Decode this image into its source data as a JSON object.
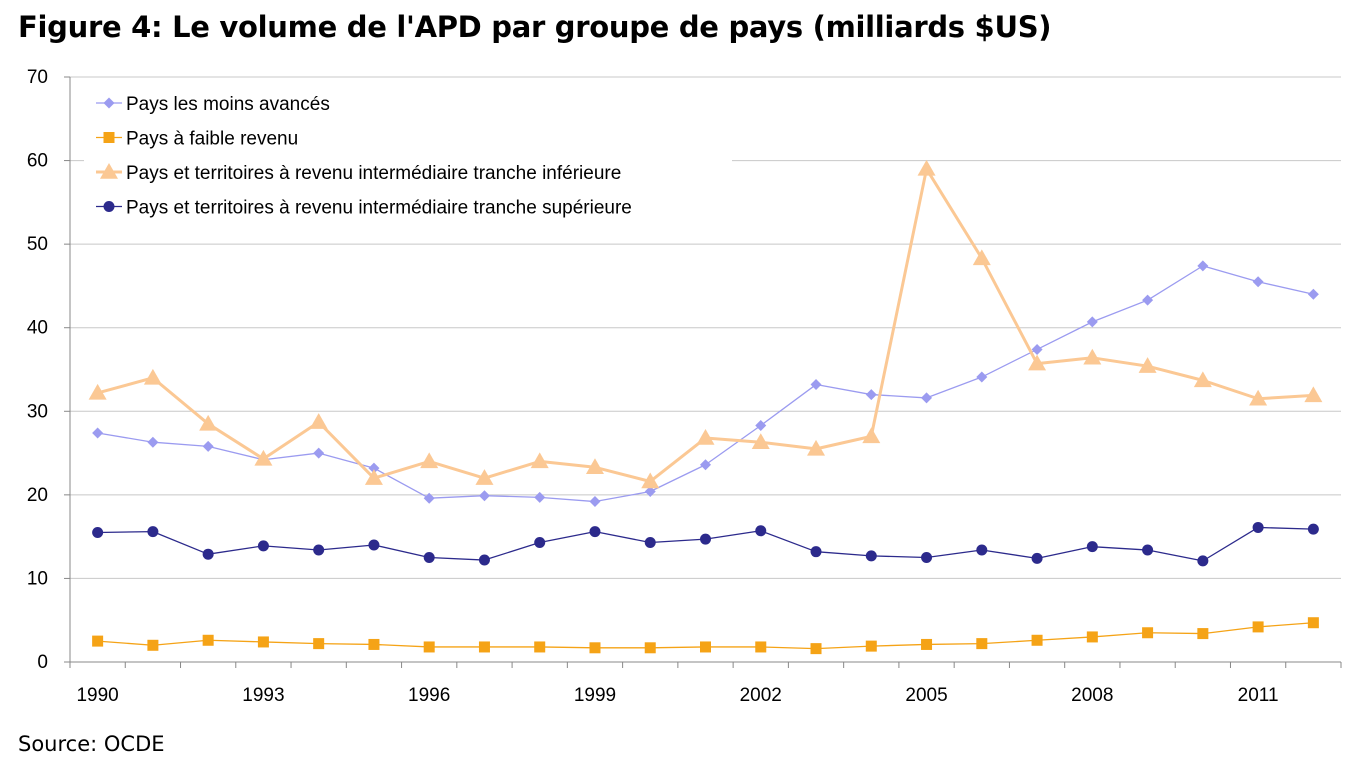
{
  "title": "Figure 4: Le volume de l'APD par groupe de pays (milliards $US)",
  "source": "Source: OCDE",
  "chart_data": {
    "type": "line",
    "title": "Figure 4: Le volume de l'APD par groupe de pays (milliards $US)",
    "xlabel": "",
    "ylabel": "",
    "ylim": [
      0,
      70
    ],
    "yticks": [
      0,
      10,
      20,
      30,
      40,
      50,
      60,
      70
    ],
    "x": [
      1990,
      1991,
      1992,
      1993,
      1994,
      1995,
      1996,
      1997,
      1998,
      1999,
      2000,
      2001,
      2002,
      2003,
      2004,
      2005,
      2006,
      2007,
      2008,
      2009,
      2010,
      2011,
      2012
    ],
    "xticks": [
      1990,
      1993,
      1996,
      1999,
      2002,
      2005,
      2008,
      2011
    ],
    "grid": "horizontal",
    "legend_position": "top-left",
    "series": [
      {
        "name": "Pays les moins avancés",
        "color": "#9b9bf0",
        "marker": "diamond",
        "values": [
          27.4,
          26.3,
          25.8,
          24.2,
          25.0,
          23.2,
          19.6,
          19.9,
          19.7,
          19.2,
          20.4,
          23.6,
          28.3,
          33.2,
          32.0,
          31.6,
          34.1,
          37.4,
          40.7,
          43.3,
          47.4,
          45.5,
          44.0
        ]
      },
      {
        "name": "Pays à faible revenu",
        "color": "#f5a316",
        "marker": "square",
        "values": [
          2.5,
          2.0,
          2.6,
          2.4,
          2.2,
          2.1,
          1.8,
          1.8,
          1.8,
          1.7,
          1.7,
          1.8,
          1.8,
          1.6,
          1.9,
          2.1,
          2.2,
          2.6,
          3.0,
          3.5,
          3.4,
          4.2,
          4.7
        ]
      },
      {
        "name": "Pays et territoires à revenu intermédiaire tranche inférieure",
        "color": "#fbc894",
        "marker": "triangle",
        "values": [
          32.2,
          34.0,
          28.5,
          24.3,
          28.7,
          22.0,
          24.0,
          22.0,
          24.0,
          23.3,
          21.6,
          26.8,
          26.3,
          25.5,
          27.0,
          59.0,
          48.3,
          35.7,
          36.4,
          35.4,
          33.7,
          31.5,
          31.9
        ]
      },
      {
        "name": "Pays et territoires à revenu intermédiaire tranche supérieure",
        "color": "#2c2a8c",
        "marker": "circle",
        "values": [
          15.5,
          15.6,
          12.9,
          13.9,
          13.4,
          14.0,
          12.5,
          12.2,
          14.3,
          15.6,
          14.3,
          14.7,
          15.7,
          13.2,
          12.7,
          12.5,
          13.4,
          12.4,
          13.8,
          13.4,
          12.1,
          16.1,
          15.9
        ]
      }
    ]
  }
}
